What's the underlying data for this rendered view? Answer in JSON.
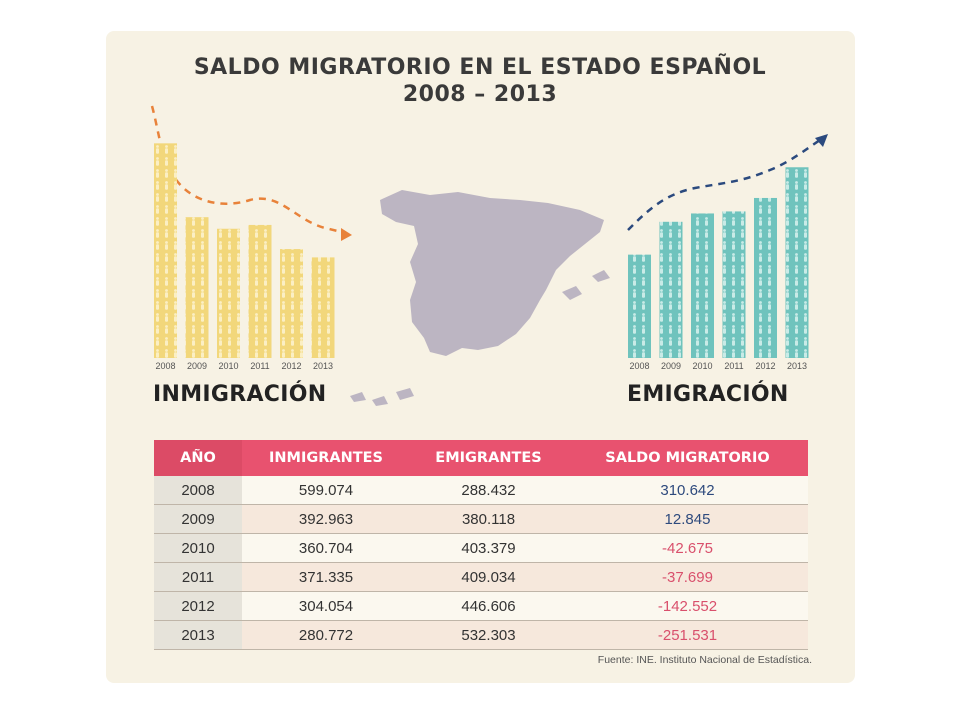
{
  "title_line1": "SALDO MIGRATORIO EN EL ESTADO ESPAÑOL",
  "title_line2": "2008 – 2013",
  "inmigracion_label": "INMIGRACIÓN",
  "emigracion_label": "EMIGRACIÓN",
  "source": "Fuente: INE. Instituto Nacional de Estadística.",
  "colors": {
    "inmigracion_bar": "#f2d77b",
    "emigracion_bar": "#6fc3bd",
    "inmigracion_arrow": "#e8823a",
    "emigracion_arrow": "#2b4a7e",
    "header": "#e8526f",
    "positive": "#2e4a7d",
    "negative": "#d9506c",
    "map": "#bcb5c2"
  },
  "table": {
    "headers": [
      "AÑO",
      "INMIGRANTES",
      "EMIGRANTES",
      "SALDO MIGRATORIO"
    ],
    "rows": [
      {
        "year": "2008",
        "inm": "599.074",
        "emi": "288.432",
        "saldo": "310.642",
        "sign": "pos"
      },
      {
        "year": "2009",
        "inm": "392.963",
        "emi": "380.118",
        "saldo": "12.845",
        "sign": "pos"
      },
      {
        "year": "2010",
        "inm": "360.704",
        "emi": "403.379",
        "saldo": "-42.675",
        "sign": "neg"
      },
      {
        "year": "2011",
        "inm": "371.335",
        "emi": "409.034",
        "saldo": "-37.699",
        "sign": "neg"
      },
      {
        "year": "2012",
        "inm": "304.054",
        "emi": "446.606",
        "saldo": "-142.552",
        "sign": "neg"
      },
      {
        "year": "2013",
        "inm": "280.772",
        "emi": "532.303",
        "saldo": "-251.531",
        "sign": "neg"
      }
    ]
  },
  "chart_data": [
    {
      "type": "bar",
      "title": "INMIGRACIÓN",
      "categories": [
        "2008",
        "2009",
        "2010",
        "2011",
        "2012",
        "2013"
      ],
      "values": [
        599074,
        392963,
        360704,
        371335,
        304054,
        280772
      ]
    },
    {
      "type": "bar",
      "title": "EMIGRACIÓN",
      "categories": [
        "2008",
        "2009",
        "2010",
        "2011",
        "2012",
        "2013"
      ],
      "values": [
        288432,
        380118,
        403379,
        409034,
        446606,
        532303
      ]
    }
  ]
}
